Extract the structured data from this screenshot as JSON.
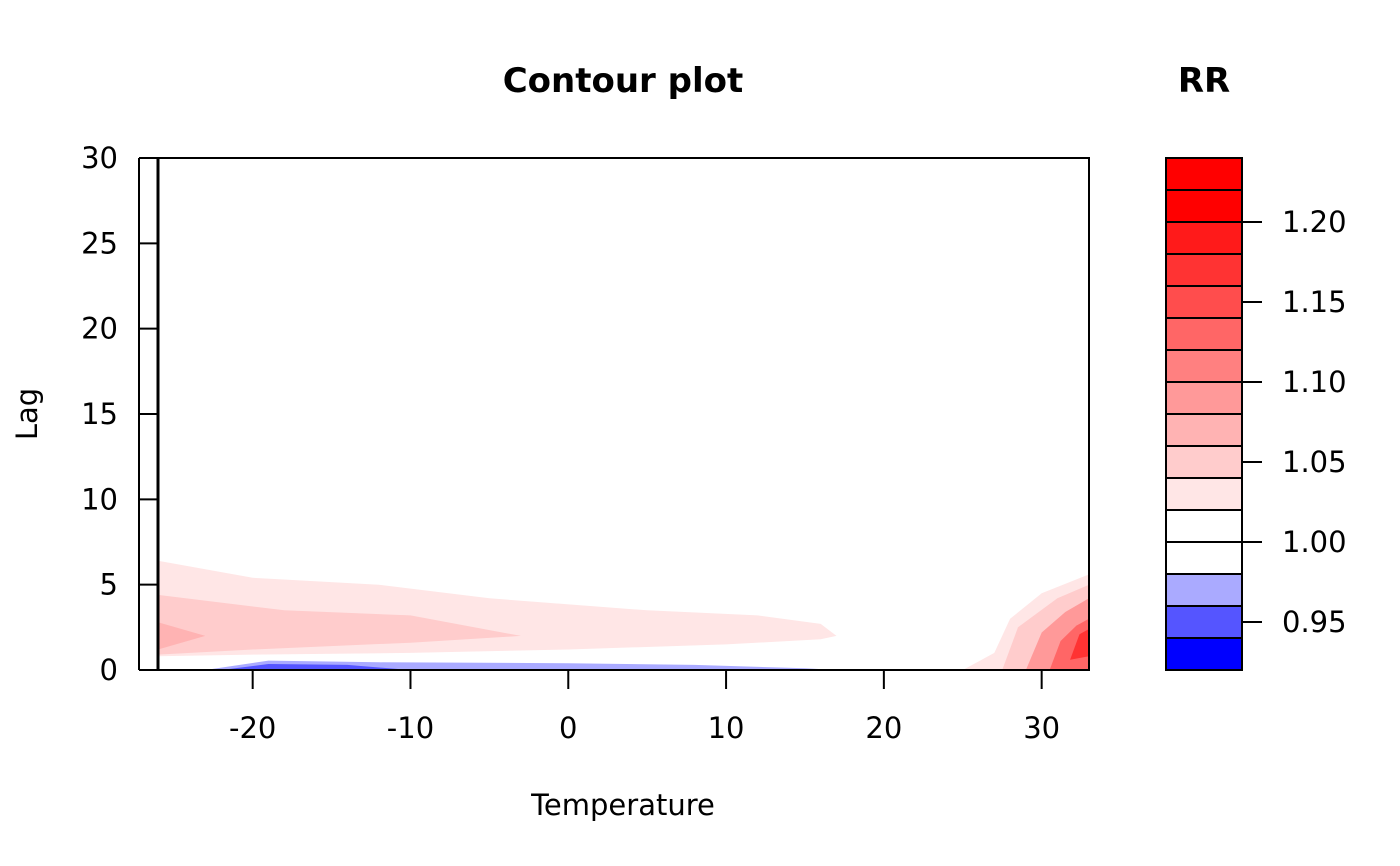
{
  "chart_data": {
    "type": "contour",
    "title": "Contour plot",
    "xlabel": "Temperature",
    "ylabel": "Lag",
    "xlim": [
      -26,
      33
    ],
    "ylim": [
      0,
      30
    ],
    "xticks": [
      -20,
      -10,
      0,
      10,
      20,
      30
    ],
    "yticks": [
      0,
      5,
      10,
      15,
      20,
      25,
      30
    ],
    "legend": {
      "title": "RR",
      "levels": [
        0.92,
        0.94,
        0.96,
        0.98,
        1.0,
        1.02,
        1.04,
        1.06,
        1.08,
        1.1,
        1.12,
        1.14,
        1.16,
        1.18,
        1.2,
        1.22,
        1.24
      ],
      "colors": [
        "#0000FF",
        "#5555FF",
        "#AAAAFF",
        "#FFFFFF",
        "#FFFFFF",
        "#FFE6E6",
        "#FFCCCC",
        "#FFB3B3",
        "#FF9999",
        "#FF8080",
        "#FF6666",
        "#FF4D4D",
        "#FF3333",
        "#FF1A1A",
        "#FF0000",
        "#FF0000"
      ],
      "tick_labels": [
        "0.95",
        "1.00",
        "1.05",
        "1.10",
        "1.15",
        "1.20"
      ],
      "tick_values": [
        0.95,
        1.0,
        1.05,
        1.1,
        1.15,
        1.2
      ]
    },
    "regions": [
      {
        "name": "rr-1.02-1.04",
        "level": 1.03,
        "color": "#FFE6E6",
        "points": [
          [
            -26,
            0.8
          ],
          [
            -20,
            0.9
          ],
          [
            -10,
            1.0
          ],
          [
            0,
            1.2
          ],
          [
            10,
            1.5
          ],
          [
            16,
            1.8
          ],
          [
            17,
            2.0
          ],
          [
            16,
            2.7
          ],
          [
            12,
            3.2
          ],
          [
            5,
            3.5
          ],
          [
            -5,
            4.2
          ],
          [
            -12,
            5.0
          ],
          [
            -20,
            5.4
          ],
          [
            -26,
            6.4
          ]
        ]
      },
      {
        "name": "rr-1.04-1.06",
        "level": 1.05,
        "color": "#FFCCCC",
        "points": [
          [
            -26,
            0.9
          ],
          [
            -20,
            1.2
          ],
          [
            -10,
            1.6
          ],
          [
            -3,
            2.0
          ],
          [
            -10,
            3.2
          ],
          [
            -18,
            3.5
          ],
          [
            -26,
            4.4
          ]
        ]
      },
      {
        "name": "rr-1.06-1.08",
        "level": 1.07,
        "color": "#FFB3B3",
        "points": [
          [
            -26,
            1.2
          ],
          [
            -23,
            2.0
          ],
          [
            -26,
            2.8
          ]
        ]
      },
      {
        "name": "rr-0.96-0.98",
        "level": 0.97,
        "color": "#AAAAFF",
        "points": [
          [
            -23,
            0.0
          ],
          [
            -19,
            0.55
          ],
          [
            -12,
            0.45
          ],
          [
            0,
            0.4
          ],
          [
            8,
            0.3
          ],
          [
            15,
            0.1
          ],
          [
            17,
            0.0
          ]
        ]
      },
      {
        "name": "rr-0.94-0.96",
        "level": 0.95,
        "color": "#5555FF",
        "points": [
          [
            -22,
            0.0
          ],
          [
            -19,
            0.35
          ],
          [
            -14,
            0.3
          ],
          [
            -10,
            0.0
          ]
        ]
      },
      {
        "name": "rr-1.02-1.04-hot",
        "level": 1.03,
        "color": "#FFE6E6",
        "points": [
          [
            25,
            0.0
          ],
          [
            27,
            1.0
          ],
          [
            28,
            3.0
          ],
          [
            30,
            4.5
          ],
          [
            33,
            5.6
          ],
          [
            33,
            0.0
          ]
        ]
      },
      {
        "name": "rr-1.04-1.06-hot",
        "level": 1.05,
        "color": "#FFCCCC",
        "points": [
          [
            27.5,
            0.0
          ],
          [
            28.5,
            2.5
          ],
          [
            31,
            4.2
          ],
          [
            33,
            5.0
          ],
          [
            33,
            0.0
          ]
        ]
      },
      {
        "name": "rr-1.06-1.10-hot",
        "level": 1.08,
        "color": "#FF9999",
        "points": [
          [
            29,
            0.0
          ],
          [
            30,
            2.2
          ],
          [
            31.5,
            3.4
          ],
          [
            33,
            4.2
          ],
          [
            33,
            0.0
          ]
        ]
      },
      {
        "name": "rr-1.10-1.14-hot",
        "level": 1.12,
        "color": "#FF6666",
        "points": [
          [
            30.5,
            0.0
          ],
          [
            31.2,
            1.7
          ],
          [
            32.2,
            2.6
          ],
          [
            33,
            3.0
          ],
          [
            33,
            0.0
          ]
        ]
      },
      {
        "name": "rr-1.14-1.20-hot",
        "level": 1.17,
        "color": "#FF3333",
        "points": [
          [
            31.8,
            0.6
          ],
          [
            32.4,
            2.1
          ],
          [
            33,
            2.4
          ],
          [
            33,
            0.8
          ]
        ]
      }
    ]
  }
}
